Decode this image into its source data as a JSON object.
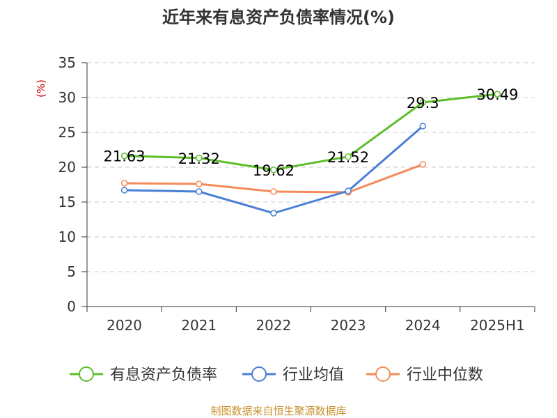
{
  "chart_data": {
    "type": "line",
    "title": "近年来有息资产负债率情况(%)",
    "ylabel": "(%)",
    "xlabel": "",
    "categories": [
      "2020",
      "2021",
      "2022",
      "2023",
      "2024",
      "2025H1"
    ],
    "ylim": [
      0,
      35
    ],
    "yticks": [
      0,
      5,
      10,
      15,
      20,
      25,
      30,
      35
    ],
    "grid": true,
    "legend_position": "bottom",
    "series": [
      {
        "name": "有息资产负债率",
        "color": "#5dbe2a",
        "values": [
          21.63,
          21.32,
          19.62,
          21.52,
          29.3,
          30.49
        ],
        "labels": [
          "21.63",
          "21.32",
          "19.62",
          "21.52",
          "29.3",
          "30.49"
        ]
      },
      {
        "name": "行业均值",
        "color": "#4a7fd6",
        "values": [
          16.7,
          16.5,
          13.4,
          16.6,
          25.9,
          null
        ]
      },
      {
        "name": "行业中位数",
        "color": "#f58a59",
        "values": [
          17.7,
          17.6,
          16.5,
          16.4,
          20.4,
          null
        ]
      }
    ]
  },
  "source_note": "制图数据来自恒生聚源数据库",
  "colors": {
    "title": "#333333",
    "axis": "#333333",
    "grid": "#c8c8c8",
    "ylabel": "#cc0000",
    "source": "#c8922e"
  }
}
